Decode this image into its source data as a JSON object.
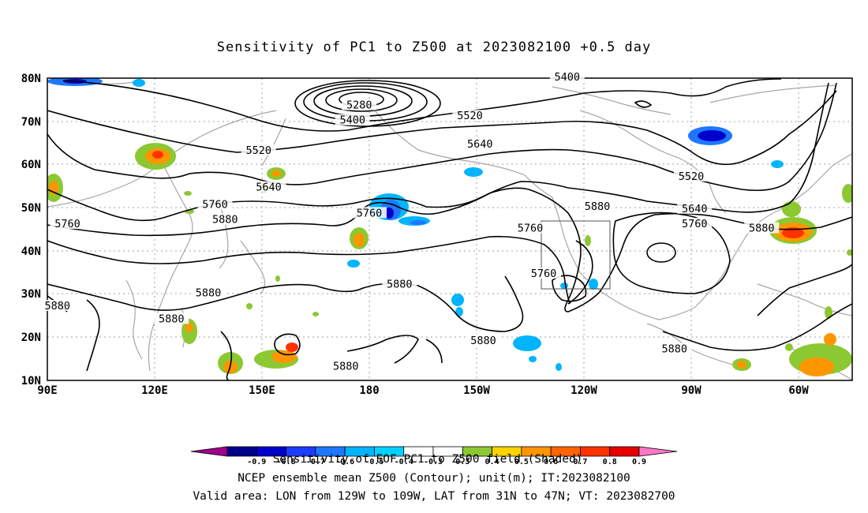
{
  "title": "Sensitivity of PC1 to Z500 at 2023082100 +0.5 day",
  "lat_labels": [
    "80N",
    "70N",
    "60N",
    "50N",
    "40N",
    "30N",
    "20N",
    "10N"
  ],
  "lon_labels": [
    "90E",
    "120E",
    "150E",
    "180",
    "150W",
    "120W",
    "90W",
    "60W"
  ],
  "contour_labels": [
    {
      "text": "5400",
      "lon": -115,
      "lat": 80
    },
    {
      "text": "5280",
      "lon": -177,
      "lat": 73.5
    },
    {
      "text": "5400",
      "lon": -179,
      "lat": 70
    },
    {
      "text": "5520",
      "lon": -144,
      "lat": 71
    },
    {
      "text": "5640",
      "lon": -141,
      "lat": 64.5
    },
    {
      "text": "5520",
      "lon": 153,
      "lat": 63
    },
    {
      "text": "5640",
      "lon": 156,
      "lat": 54.5
    },
    {
      "text": "5760",
      "lon": 140,
      "lat": 50.5
    },
    {
      "text": "5760",
      "lon": -174,
      "lat": 48.5
    },
    {
      "text": "5880",
      "lon": 143,
      "lat": 47
    },
    {
      "text": "5760",
      "lon": 96,
      "lat": 46
    },
    {
      "text": "5880",
      "lon": -106,
      "lat": 50
    },
    {
      "text": "5520",
      "lon": -78,
      "lat": 57
    },
    {
      "text": "5640",
      "lon": -77,
      "lat": 49.5
    },
    {
      "text": "5760",
      "lon": -77,
      "lat": 46
    },
    {
      "text": "5880",
      "lon": -57,
      "lat": 45
    },
    {
      "text": "5760",
      "lon": -126,
      "lat": 45
    },
    {
      "text": "5760",
      "lon": -122,
      "lat": 34.5
    },
    {
      "text": "5880",
      "lon": -165,
      "lat": 32
    },
    {
      "text": "5880",
      "lon": 138,
      "lat": 30
    },
    {
      "text": "5880",
      "lon": 93,
      "lat": 27
    },
    {
      "text": "5880",
      "lon": 127,
      "lat": 24
    },
    {
      "text": "5880",
      "lon": -140,
      "lat": 19
    },
    {
      "text": "5880",
      "lon": -83,
      "lat": 17
    },
    {
      "text": "5880",
      "lon": 179,
      "lat": 13
    }
  ],
  "valid_box": {
    "lon_min": -129,
    "lon_max": -109,
    "lat_min": 31,
    "lat_max": 47
  },
  "colorbar": {
    "colors": [
      "#a0008a",
      "#00008b",
      "#0000cd",
      "#1e3cff",
      "#1e78ff",
      "#00b4ff",
      "#00d2ff",
      "#ffffff",
      "#ffffff",
      "#8cc832",
      "#ffd200",
      "#ff9600",
      "#ff6400",
      "#ff3200",
      "#e60000",
      "#ff78c8"
    ],
    "labels": [
      "-0.9",
      "-0.8",
      "-0.7",
      "-0.6",
      "-0.5",
      "-0.4",
      "-0.3",
      "0.3",
      "0.4",
      "0.5",
      "0.6",
      "0.7",
      "0.8",
      "0.9"
    ],
    "overlap_text": "Sensitivity of EOF PC1 to Z500 field (Shaded)"
  },
  "caption_lines": [
    "NCEP ensemble mean Z500 (Contour); unit(m); IT:2023082100",
    "Valid area: LON from 129W to 109W, LAT from 31N to 47N; VT: 2023082700"
  ],
  "colors": {
    "contour": "#000000",
    "coast": "#a6a6a6",
    "grid": "#a0a0a0"
  }
}
